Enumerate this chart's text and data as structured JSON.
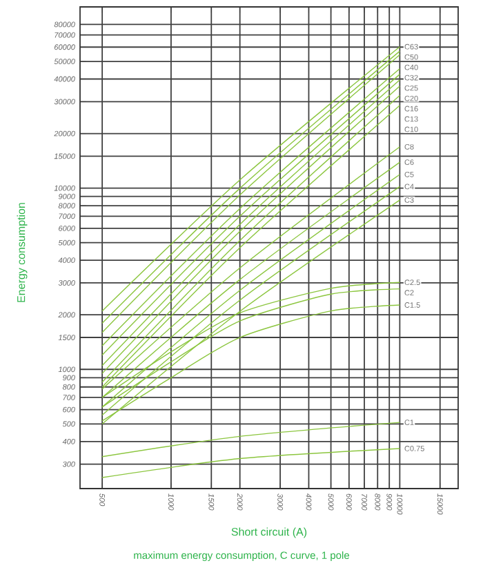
{
  "chart_data": {
    "type": "line",
    "title": "maximum energy consumption, C curve, 1 pole",
    "xlabel": "Short circuit (A)",
    "ylabel": "Energy consumption",
    "log": "xy",
    "grid": true,
    "xlim": [
      400,
      18000
    ],
    "ylim": [
      220,
      100000
    ],
    "xticks": [
      500,
      1000,
      1500,
      2000,
      3000,
      4000,
      5000,
      6000,
      7000,
      8000,
      9000,
      10000,
      15000
    ],
    "yticks": [
      300,
      400,
      500,
      600,
      700,
      800,
      900,
      1000,
      1500,
      2000,
      3000,
      4000,
      5000,
      6000,
      7000,
      8000,
      9000,
      10000,
      15000,
      20000,
      30000,
      40000,
      50000,
      60000,
      70000,
      80000
    ],
    "series": [
      {
        "name": "C63",
        "color": "#8cc63f",
        "x": [
          500,
          2000,
          10000
        ],
        "values": [
          2100,
          11100,
          60300
        ]
      },
      {
        "name": "C50",
        "color": "#8cc63f",
        "x": [
          500,
          2000,
          10000
        ],
        "values": [
          1800,
          9980,
          57000
        ]
      },
      {
        "name": "C40",
        "color": "#8cc63f",
        "x": [
          500,
          2000,
          10000
        ],
        "values": [
          1600,
          9170,
          54500
        ]
      },
      {
        "name": "C32",
        "color": "#8cc63f",
        "x": [
          500,
          2000,
          10000
        ],
        "values": [
          1350,
          7720,
          45600
        ]
      },
      {
        "name": "C25",
        "color": "#8cc63f",
        "x": [
          500,
          2000,
          10000
        ],
        "values": [
          1200,
          7000,
          42500
        ]
      },
      {
        "name": "C20",
        "color": "#8cc63f",
        "x": [
          500,
          2000,
          10000
        ],
        "values": [
          1050,
          6310,
          39600
        ]
      },
      {
        "name": "C16",
        "color": "#8cc63f",
        "x": [
          500,
          2000,
          10000
        ],
        "values": [
          950,
          5770,
          36600
        ]
      },
      {
        "name": "C13",
        "color": "#8cc63f",
        "x": [
          500,
          2000,
          10000
        ],
        "values": [
          850,
          5140,
          32500
        ]
      },
      {
        "name": "C10",
        "color": "#8cc63f",
        "x": [
          500,
          2000,
          10000
        ],
        "values": [
          800,
          4690,
          28600
        ]
      },
      {
        "name": "C8",
        "color": "#8cc63f",
        "x": [
          500,
          2000,
          10000
        ],
        "values": [
          780,
          3630,
          16900
        ]
      },
      {
        "name": "C6",
        "color": "#8cc63f",
        "x": [
          500,
          2000,
          10000
        ],
        "values": [
          700,
          3130,
          13900
        ]
      },
      {
        "name": "C5",
        "color": "#8cc63f",
        "x": [
          500,
          2000,
          10000
        ],
        "values": [
          620,
          2730,
          11900
        ]
      },
      {
        "name": "C4",
        "color": "#8cc63f",
        "x": [
          500,
          2000,
          10000
        ],
        "values": [
          560,
          2410,
          10200
        ]
      },
      {
        "name": "C3",
        "color": "#8cc63f",
        "x": [
          500,
          2000,
          10000
        ],
        "values": [
          500,
          2090,
          8600
        ]
      },
      {
        "name": "C2.5",
        "color": "#8cc63f",
        "x": [
          500,
          1000,
          2000,
          5000,
          10000
        ],
        "values": [
          700,
          1250,
          2050,
          2800,
          3020
        ]
      },
      {
        "name": "C2",
        "color": "#8cc63f",
        "x": [
          500,
          1000,
          2000,
          5000,
          10000
        ],
        "values": [
          620,
          1100,
          1850,
          2600,
          2780
        ]
      },
      {
        "name": "C1.5",
        "color": "#8cc63f",
        "x": [
          500,
          1000,
          2000,
          5000,
          10000
        ],
        "values": [
          520,
          900,
          1500,
          2100,
          2265
        ]
      },
      {
        "name": "C1",
        "color": "#8cc63f",
        "x": [
          500,
          2000,
          10000
        ],
        "values": [
          330,
          427,
          510
        ]
      },
      {
        "name": "C0.75",
        "color": "#8cc63f",
        "x": [
          500,
          2000,
          10000
        ],
        "values": [
          253,
          322,
          366
        ]
      }
    ]
  }
}
